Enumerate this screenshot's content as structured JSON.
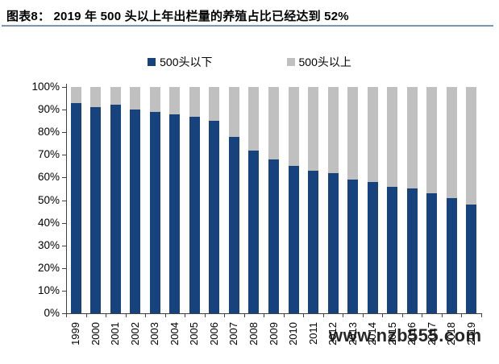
{
  "title": "图表8： 2019 年 500 头以上年出栏量的养殖占比已经达到 52%",
  "watermark": "www.nzb555.com",
  "colors": {
    "title_rule": "#7a96b5",
    "axis": "#3f3f3f",
    "text": "#000000"
  },
  "chart_data": {
    "type": "bar",
    "stacked": true,
    "stack_unit": "percent",
    "title": "2019 年 500 头以上年出栏量的养殖占比已经达到 52%",
    "legend_position": "top",
    "grid": false,
    "ylim": [
      0,
      100
    ],
    "y_ticks": [
      "0%",
      "10%",
      "20%",
      "30%",
      "40%",
      "50%",
      "60%",
      "70%",
      "80%",
      "90%",
      "100%"
    ],
    "categories": [
      "1999",
      "2000",
      "2001",
      "2002",
      "2003",
      "2004",
      "2005",
      "2006",
      "2007",
      "2008",
      "2009",
      "2010",
      "2011",
      "2012",
      "2013",
      "2014",
      "2015",
      "2016",
      "2017",
      "2018",
      "2019"
    ],
    "series": [
      {
        "name": "500头以下",
        "color": "#16437e",
        "values": [
          93,
          91,
          92,
          90,
          89,
          88,
          87,
          85,
          78,
          72,
          68,
          65,
          63,
          62,
          59,
          58,
          56,
          55,
          53,
          51,
          48
        ]
      },
      {
        "name": "500头以上",
        "color": "#c0c0c0",
        "values": [
          7,
          9,
          8,
          10,
          11,
          12,
          13,
          15,
          22,
          28,
          32,
          35,
          37,
          38,
          41,
          42,
          44,
          45,
          47,
          49,
          52
        ]
      }
    ]
  }
}
